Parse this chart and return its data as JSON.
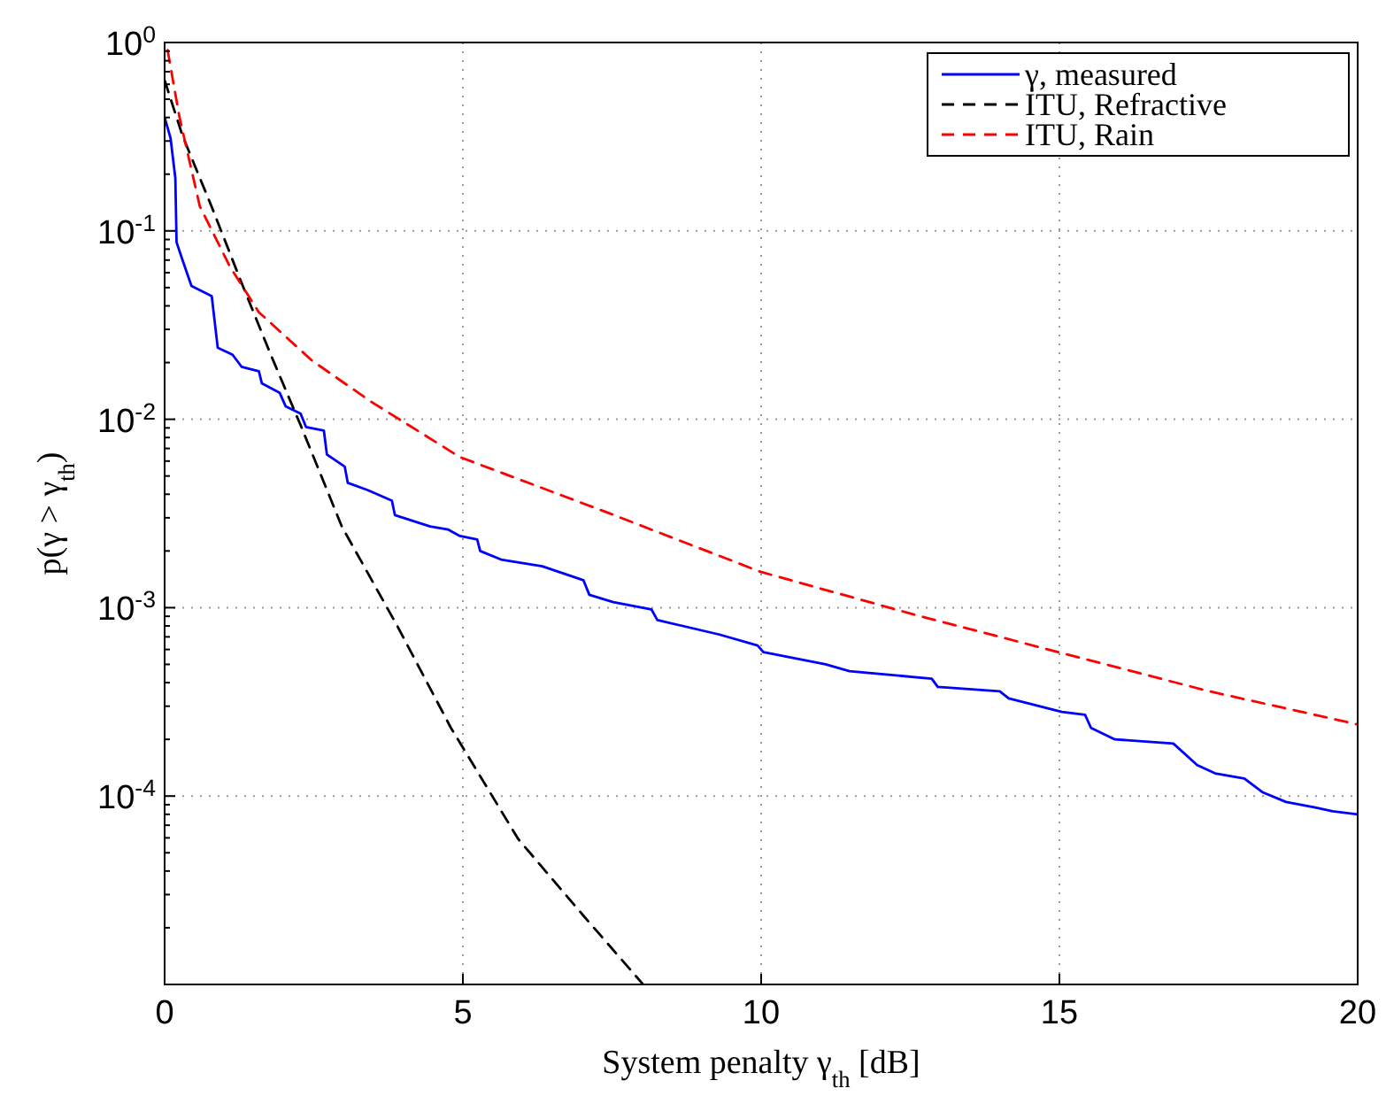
{
  "chart_data": {
    "type": "line",
    "xlabel": "System penalty γ$_{th}$ [dB]",
    "ylabel": "p(γ > γ$_{th}$)",
    "log": "y",
    "grid": true,
    "legend": "top right",
    "xlim": [
      0,
      20
    ],
    "xticks": [
      0,
      5,
      10,
      15,
      20
    ],
    "ylim": [
      1e-05,
      1
    ],
    "yticks": [
      {
        "value": 1,
        "label": "10$^{0}$"
      },
      {
        "value": 0.1,
        "label": "10$^{-1}$"
      },
      {
        "value": 0.01,
        "label": "10$^{-2}$"
      },
      {
        "value": 0.001,
        "label": "10$^{-3}$"
      },
      {
        "value": 0.0001,
        "label": "10$^{-4}$"
      },
      {
        "value": 1e-05,
        "label": null
      }
    ],
    "series": [
      {
        "name": "γ, measured",
        "color": "#0000ff",
        "line_style": "solid",
        "x": [
          0,
          0.1,
          0.18,
          0.2,
          0.3,
          0.45,
          0.79,
          0.89,
          1.14,
          1.29,
          1.58,
          1.63,
          1.93,
          2.03,
          2.28,
          2.37,
          2.67,
          2.72,
          3.02,
          3.07,
          3.41,
          3.81,
          3.86,
          4.45,
          4.75,
          4.95,
          5.24,
          5.29,
          5.64,
          6.33,
          7.02,
          7.12,
          7.52,
          8.16,
          8.26,
          9.3,
          9.94,
          10.04,
          11.08,
          11.48,
          12.86,
          12.96,
          14.0,
          14.15,
          15.04,
          15.43,
          15.53,
          15.93,
          16.91,
          17.31,
          17.61,
          18.1,
          18.4,
          18.8,
          19.29,
          19.58,
          20
        ],
        "values": [
          0.4,
          0.31,
          0.19,
          0.087,
          0.07,
          0.051,
          0.045,
          0.024,
          0.022,
          0.019,
          0.018,
          0.0155,
          0.0138,
          0.0117,
          0.0107,
          0.0091,
          0.0087,
          0.0065,
          0.0056,
          0.0046,
          0.0042,
          0.0037,
          0.0031,
          0.0027,
          0.0026,
          0.0024,
          0.0023,
          0.002,
          0.0018,
          0.00166,
          0.0014,
          0.00117,
          0.00107,
          0.00098,
          0.00086,
          0.00072,
          0.00063,
          0.00058,
          0.0005,
          0.00046,
          0.00042,
          0.00038,
          0.00036,
          0.00033,
          0.00028,
          0.00027,
          0.00023,
          0.0002,
          0.00019,
          0.000146,
          0.000132,
          0.000124,
          0.000105,
          9.3e-05,
          8.7e-05,
          8.3e-05,
          8e-05
        ]
      },
      {
        "name": "ITU, Refractive",
        "color": "#000000",
        "line_style": "dashed",
        "x": [
          0,
          0.3,
          0.79,
          1.29,
          1.78,
          2.28,
          2.97,
          3.9,
          4.8,
          5.93,
          7.02,
          8.01
        ],
        "values": [
          0.63,
          0.32,
          0.134,
          0.053,
          0.022,
          0.0093,
          0.0027,
          0.0008,
          0.00023,
          5.9e-05,
          2.32e-05,
          1.01e-05
        ]
      },
      {
        "name": "ITU, Rain",
        "color": "#ff0000",
        "line_style": "dashed",
        "x": [
          0.05,
          0.25,
          0.59,
          1.09,
          1.58,
          2.47,
          3.46,
          4.95,
          7.42,
          9.99,
          12.56,
          14.99,
          17.51,
          20
        ],
        "values": [
          0.91,
          0.4,
          0.135,
          0.065,
          0.037,
          0.0205,
          0.0124,
          0.0063,
          0.0032,
          0.00155,
          0.00092,
          0.00058,
          0.00036,
          0.00024
        ]
      }
    ]
  }
}
